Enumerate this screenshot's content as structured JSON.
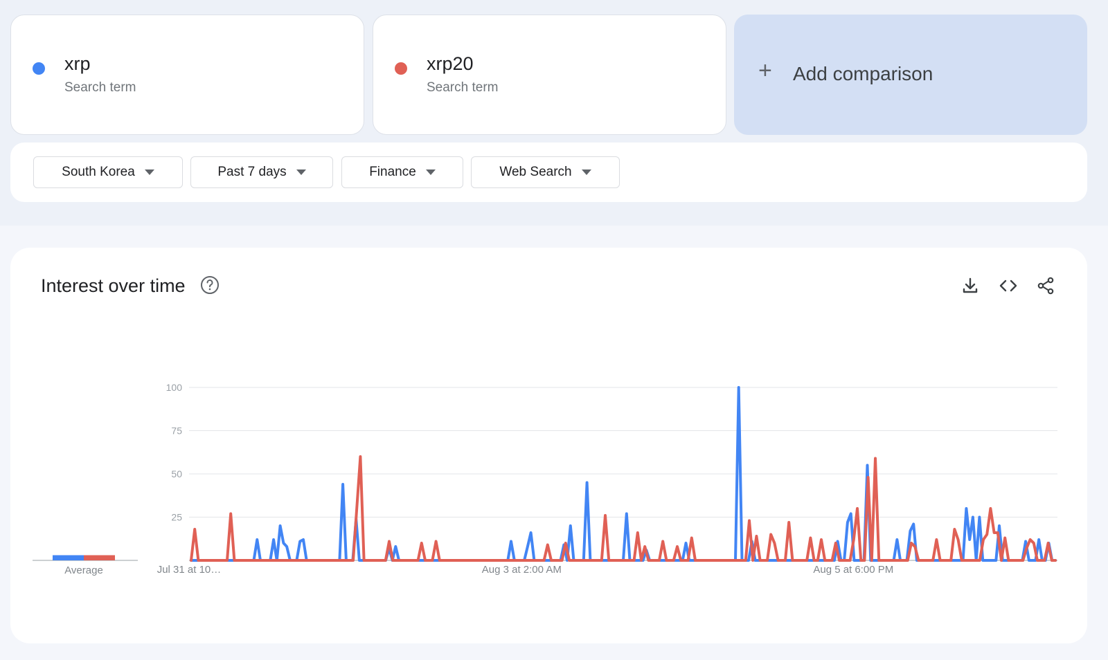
{
  "terms": [
    {
      "name": "xrp",
      "sublabel": "Search term",
      "color": "#4285f4"
    },
    {
      "name": "xrp20",
      "sublabel": "Search term",
      "color": "#e06055"
    }
  ],
  "add_comparison": {
    "icon": "+",
    "label": "Add comparison"
  },
  "filters": [
    {
      "label": "South Korea"
    },
    {
      "label": "Past 7 days"
    },
    {
      "label": "Finance"
    },
    {
      "label": "Web Search"
    }
  ],
  "chart_panel": {
    "title": "Interest over time",
    "icons": [
      "help-icon",
      "download-icon",
      "embed-icon",
      "share-icon"
    ]
  },
  "chart_data": {
    "type": "line",
    "title": "Interest over time",
    "ylim": [
      0,
      100
    ],
    "yticks": [
      25,
      50,
      75,
      100
    ],
    "grid": true,
    "x_tick_labels": [
      "Jul 31 at 10…",
      "Aug 3 at 2:00 AM",
      "Aug 5 at 6:00 PM"
    ],
    "average_label": "Average",
    "averages": [
      {
        "name": "xrp",
        "value": 3
      },
      {
        "name": "xrp20",
        "value": 3
      }
    ],
    "series": [
      {
        "name": "xrp",
        "color": "#4285f4",
        "values": [
          0,
          0,
          0,
          0,
          0,
          0,
          0,
          0,
          0,
          0,
          0,
          0,
          0,
          0,
          0,
          0,
          0,
          0,
          0,
          0,
          12,
          0,
          0,
          0,
          0,
          12,
          0,
          20,
          10,
          8,
          0,
          0,
          0,
          11,
          12,
          0,
          0,
          0,
          0,
          0,
          0,
          0,
          0,
          0,
          0,
          0,
          44,
          0,
          0,
          0,
          24,
          0,
          0,
          0,
          0,
          0,
          0,
          0,
          0,
          0,
          7,
          0,
          8,
          0,
          0,
          0,
          0,
          0,
          0,
          0,
          0,
          0,
          0,
          0,
          0,
          0,
          0,
          0,
          0,
          0,
          0,
          0,
          0,
          0,
          0,
          0,
          0,
          0,
          0,
          0,
          0,
          0,
          0,
          0,
          0,
          0,
          0,
          11,
          0,
          0,
          0,
          0,
          8,
          16,
          0,
          0,
          0,
          0,
          0,
          0,
          0,
          0,
          0,
          9,
          0,
          20,
          0,
          0,
          0,
          0,
          45,
          0,
          0,
          0,
          0,
          0,
          0,
          0,
          0,
          0,
          0,
          0,
          27,
          0,
          0,
          0,
          0,
          0,
          6,
          0,
          0,
          0,
          0,
          0,
          0,
          0,
          0,
          0,
          0,
          0,
          10,
          0,
          0,
          0,
          0,
          0,
          0,
          0,
          0,
          0,
          0,
          0,
          0,
          0,
          0,
          0,
          100,
          0,
          0,
          0,
          11,
          0,
          0,
          0,
          0,
          0,
          0,
          0,
          0,
          0,
          0,
          0,
          0,
          0,
          0,
          0,
          0,
          0,
          0,
          0,
          0,
          0,
          0,
          0,
          0,
          0,
          11,
          0,
          0,
          22,
          27,
          0,
          0,
          0,
          0,
          55,
          0,
          0,
          0,
          0,
          0,
          0,
          0,
          0,
          12,
          0,
          0,
          0,
          17,
          21,
          0,
          0,
          0,
          0,
          0,
          0,
          0,
          0,
          0,
          0,
          0,
          0,
          0,
          0,
          0,
          30,
          12,
          25,
          0,
          25,
          0,
          0,
          0,
          0,
          0,
          20,
          0,
          0,
          0,
          0,
          0,
          0,
          0,
          11,
          0,
          0,
          0,
          12,
          0,
          0,
          10,
          0,
          0
        ],
        "start_x": 0
      },
      {
        "name": "xrp20",
        "color": "#e06055",
        "values": [
          0,
          18,
          0,
          0,
          0,
          0,
          0,
          0,
          0,
          0,
          0,
          27,
          0,
          0,
          0,
          0,
          0,
          0,
          0,
          0,
          0,
          0,
          0,
          0,
          0,
          0,
          0,
          0,
          0,
          0,
          0,
          0,
          0,
          0,
          0,
          0,
          0,
          0,
          0,
          0,
          0,
          0,
          0,
          0,
          0,
          0,
          30,
          60,
          0,
          0,
          0,
          0,
          0,
          0,
          0,
          11,
          0,
          0,
          0,
          0,
          0,
          0,
          0,
          0,
          10,
          0,
          0,
          0,
          11,
          0,
          0,
          0,
          0,
          0,
          0,
          0,
          0,
          0,
          0,
          0,
          0,
          0,
          0,
          0,
          0,
          0,
          0,
          0,
          0,
          0,
          0,
          0,
          0,
          0,
          0,
          0,
          0,
          0,
          0,
          9,
          0,
          0,
          0,
          0,
          10,
          0,
          0,
          0,
          0,
          0,
          0,
          0,
          0,
          0,
          0,
          26,
          0,
          0,
          0,
          0,
          0,
          0,
          0,
          0,
          16,
          0,
          8,
          0,
          0,
          0,
          0,
          11,
          0,
          0,
          0,
          8,
          0,
          0,
          0,
          13,
          0,
          0,
          0,
          0,
          0,
          0,
          0,
          0,
          0,
          0,
          0,
          0,
          0,
          0,
          0,
          23,
          0,
          14,
          0,
          0,
          0,
          15,
          10,
          0,
          0,
          0,
          22,
          0,
          0,
          0,
          0,
          0,
          13,
          0,
          0,
          12,
          0,
          0,
          0,
          10,
          0,
          0,
          0,
          0,
          12,
          30,
          0,
          0,
          48,
          0,
          59,
          0,
          0,
          0,
          0,
          0,
          0,
          0,
          0,
          0,
          10,
          8,
          0,
          0,
          0,
          0,
          0,
          12,
          0,
          0,
          0,
          0,
          18,
          12,
          0,
          0,
          0,
          0,
          0,
          0,
          12,
          15,
          30,
          16,
          16,
          0,
          13,
          0,
          0,
          0,
          0,
          0,
          7,
          12,
          10,
          0,
          0,
          0,
          10,
          0,
          0
        ],
        "start_x": 0
      }
    ]
  }
}
